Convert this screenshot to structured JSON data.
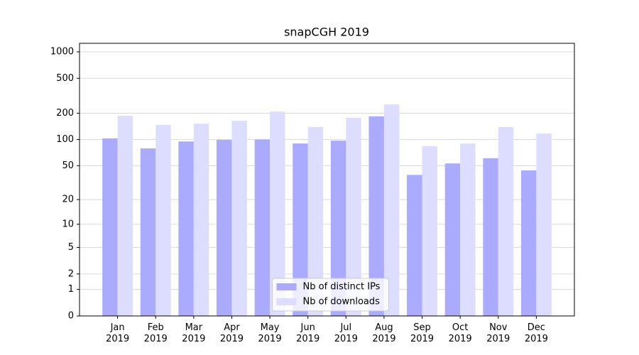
{
  "chart_data": {
    "type": "bar",
    "title": "snapCGH 2019",
    "categories": [
      "Jan 2019",
      "Feb 2019",
      "Mar 2019",
      "Apr 2019",
      "May 2019",
      "Jun 2019",
      "Jul 2019",
      "Aug 2019",
      "Sep 2019",
      "Oct 2019",
      "Nov 2019",
      "Dec 2019"
    ],
    "series": [
      {
        "name": "Nb of distinct IPs",
        "color": "#aaaaff",
        "values": [
          103,
          79,
          95,
          99,
          100,
          90,
          97,
          184,
          39,
          53,
          61,
          44
        ]
      },
      {
        "name": "Nb of downloads",
        "color": "#ddddff",
        "values": [
          187,
          147,
          152,
          164,
          209,
          139,
          177,
          252,
          84,
          90,
          139,
          117
        ]
      }
    ],
    "yscale": "log1p",
    "ylim": [
      0,
      1250
    ],
    "yticks": [
      0,
      1,
      2,
      5,
      10,
      20,
      50,
      100,
      200,
      500,
      1000
    ],
    "grid": true,
    "legend": "lower center"
  }
}
